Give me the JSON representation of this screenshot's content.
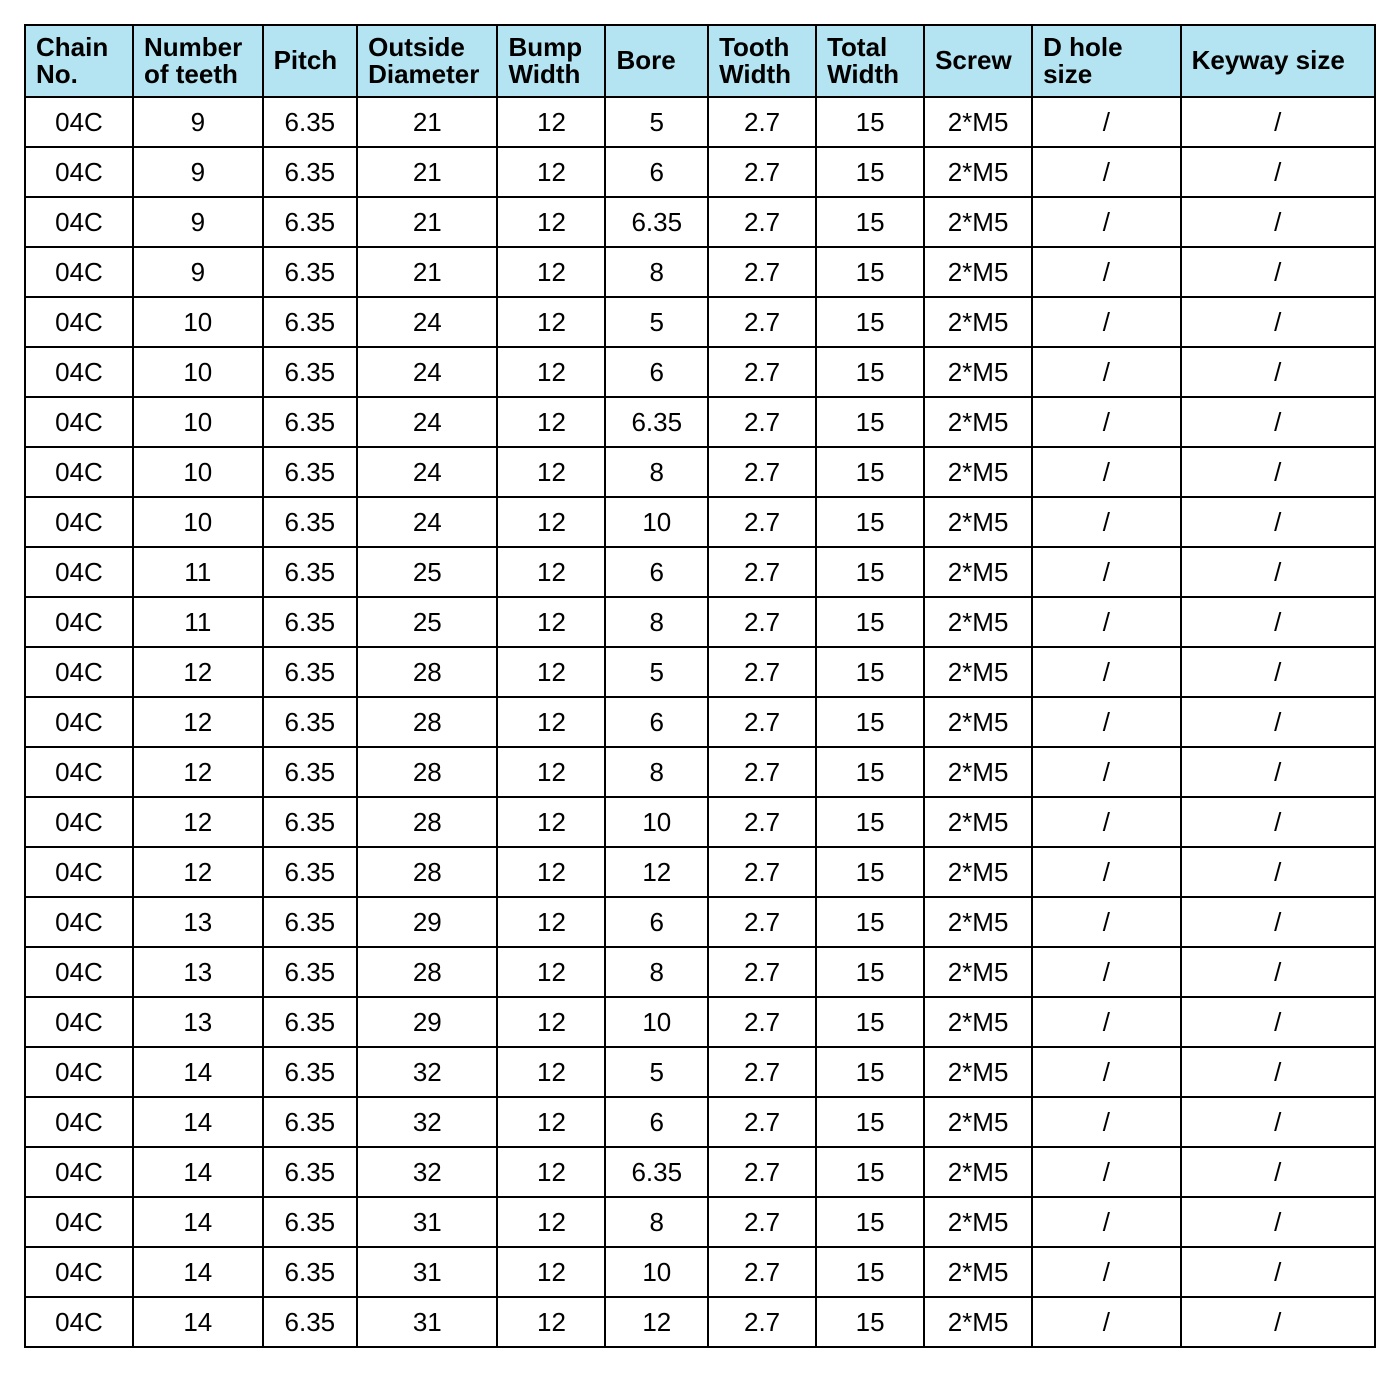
{
  "table": {
    "type": "table",
    "header_bg": "#b4e3f1",
    "border_color": "#000000",
    "text_color": "#000000",
    "font_family": "Arial",
    "header_fontsize_pt": 19,
    "cell_fontsize_pt": 19,
    "columns": [
      "Chain No.",
      "Number of teeth",
      "Pitch",
      "Outside Diameter",
      "Bump Width",
      "Bore",
      "Tooth Width",
      "Total Width",
      "Screw",
      "D hole size",
      "Keyway size"
    ],
    "column_widths_pct": [
      8.0,
      9.6,
      7.0,
      10.4,
      8.0,
      7.6,
      8.0,
      8.0,
      8.0,
      11.0,
      14.4
    ],
    "header_align": "left",
    "cell_align": "center",
    "rows": [
      [
        "04C",
        "9",
        "6.35",
        "21",
        "12",
        "5",
        "2.7",
        "15",
        "2*M5",
        "/",
        "/"
      ],
      [
        "04C",
        "9",
        "6.35",
        "21",
        "12",
        "6",
        "2.7",
        "15",
        "2*M5",
        "/",
        "/"
      ],
      [
        "04C",
        "9",
        "6.35",
        "21",
        "12",
        "6.35",
        "2.7",
        "15",
        "2*M5",
        "/",
        "/"
      ],
      [
        "04C",
        "9",
        "6.35",
        "21",
        "12",
        "8",
        "2.7",
        "15",
        "2*M5",
        "/",
        "/"
      ],
      [
        "04C",
        "10",
        "6.35",
        "24",
        "12",
        "5",
        "2.7",
        "15",
        "2*M5",
        "/",
        "/"
      ],
      [
        "04C",
        "10",
        "6.35",
        "24",
        "12",
        "6",
        "2.7",
        "15",
        "2*M5",
        "/",
        "/"
      ],
      [
        "04C",
        "10",
        "6.35",
        "24",
        "12",
        "6.35",
        "2.7",
        "15",
        "2*M5",
        "/",
        "/"
      ],
      [
        "04C",
        "10",
        "6.35",
        "24",
        "12",
        "8",
        "2.7",
        "15",
        "2*M5",
        "/",
        "/"
      ],
      [
        "04C",
        "10",
        "6.35",
        "24",
        "12",
        "10",
        "2.7",
        "15",
        "2*M5",
        "/",
        "/"
      ],
      [
        "04C",
        "11",
        "6.35",
        "25",
        "12",
        "6",
        "2.7",
        "15",
        "2*M5",
        "/",
        "/"
      ],
      [
        "04C",
        "11",
        "6.35",
        "25",
        "12",
        "8",
        "2.7",
        "15",
        "2*M5",
        "/",
        "/"
      ],
      [
        "04C",
        "12",
        "6.35",
        "28",
        "12",
        "5",
        "2.7",
        "15",
        "2*M5",
        "/",
        "/"
      ],
      [
        "04C",
        "12",
        "6.35",
        "28",
        "12",
        "6",
        "2.7",
        "15",
        "2*M5",
        "/",
        "/"
      ],
      [
        "04C",
        "12",
        "6.35",
        "28",
        "12",
        "8",
        "2.7",
        "15",
        "2*M5",
        "/",
        "/"
      ],
      [
        "04C",
        "12",
        "6.35",
        "28",
        "12",
        "10",
        "2.7",
        "15",
        "2*M5",
        "/",
        "/"
      ],
      [
        "04C",
        "12",
        "6.35",
        "28",
        "12",
        "12",
        "2.7",
        "15",
        "2*M5",
        "/",
        "/"
      ],
      [
        "04C",
        "13",
        "6.35",
        "29",
        "12",
        "6",
        "2.7",
        "15",
        "2*M5",
        "/",
        "/"
      ],
      [
        "04C",
        "13",
        "6.35",
        "28",
        "12",
        "8",
        "2.7",
        "15",
        "2*M5",
        "/",
        "/"
      ],
      [
        "04C",
        "13",
        "6.35",
        "29",
        "12",
        "10",
        "2.7",
        "15",
        "2*M5",
        "/",
        "/"
      ],
      [
        "04C",
        "14",
        "6.35",
        "32",
        "12",
        "5",
        "2.7",
        "15",
        "2*M5",
        "/",
        "/"
      ],
      [
        "04C",
        "14",
        "6.35",
        "32",
        "12",
        "6",
        "2.7",
        "15",
        "2*M5",
        "/",
        "/"
      ],
      [
        "04C",
        "14",
        "6.35",
        "32",
        "12",
        "6.35",
        "2.7",
        "15",
        "2*M5",
        "/",
        "/"
      ],
      [
        "04C",
        "14",
        "6.35",
        "31",
        "12",
        "8",
        "2.7",
        "15",
        "2*M5",
        "/",
        "/"
      ],
      [
        "04C",
        "14",
        "6.35",
        "31",
        "12",
        "10",
        "2.7",
        "15",
        "2*M5",
        "/",
        "/"
      ],
      [
        "04C",
        "14",
        "6.35",
        "31",
        "12",
        "12",
        "2.7",
        "15",
        "2*M5",
        "/",
        "/"
      ]
    ]
  }
}
